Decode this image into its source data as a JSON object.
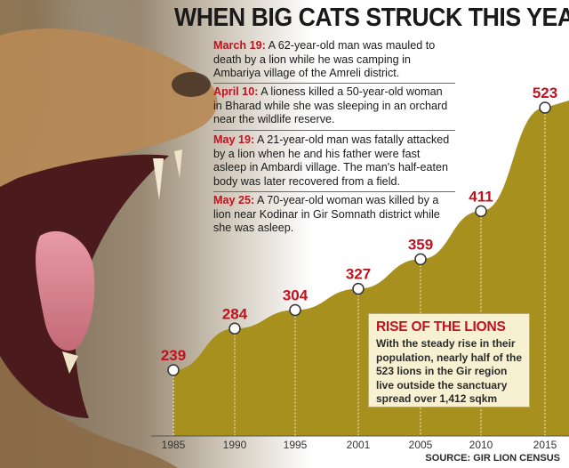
{
  "title": "WHEN BIG CATS STRUCK THIS YEAR",
  "events": [
    {
      "date": "March 19:",
      "text": " A 62-year-old man was mauled to death by a lion while he was camping in Ambariya village of the Amreli district."
    },
    {
      "date": "April 10:",
      "text": " A lioness killed a 50-year-old woman in Bharad while she was sleeping in an orchard near the wildlife reserve."
    },
    {
      "date": "May 19:",
      "text": " A 21-year-old man was fatally attacked by a lion when he and his father were fast asleep in Ambardi village. The man's half-eaten body was later recovered from a field."
    },
    {
      "date": "May 25:",
      "text": " A 70-year-old woman was killed by a lion near Kodinar in Gir Somnath district while she was asleep."
    }
  ],
  "info": {
    "title": "RISE OF THE LIONS",
    "text": "With the steady rise in their population, nearly half of the 523 lions in the Gir region live outside the sanctuary spread over 1,412 sqkm"
  },
  "source": "SOURCE: GIR LION CENSUS",
  "colors": {
    "area": "#a8901e",
    "label": "#c1121f",
    "dropline": "#f2eccb",
    "marker_fill": "#ffffff",
    "marker_stroke": "#333333"
  },
  "chart_data": {
    "type": "area",
    "x": [
      "1985",
      "1990",
      "1995",
      "2001",
      "2005",
      "2010",
      "2015"
    ],
    "values": [
      239,
      284,
      304,
      327,
      359,
      411,
      523
    ],
    "data_labels": [
      "239",
      "284",
      "304",
      "327",
      "359",
      "411",
      "523"
    ],
    "title": "",
    "xlabel": "",
    "ylabel": "",
    "grid": false,
    "legend": "none"
  }
}
